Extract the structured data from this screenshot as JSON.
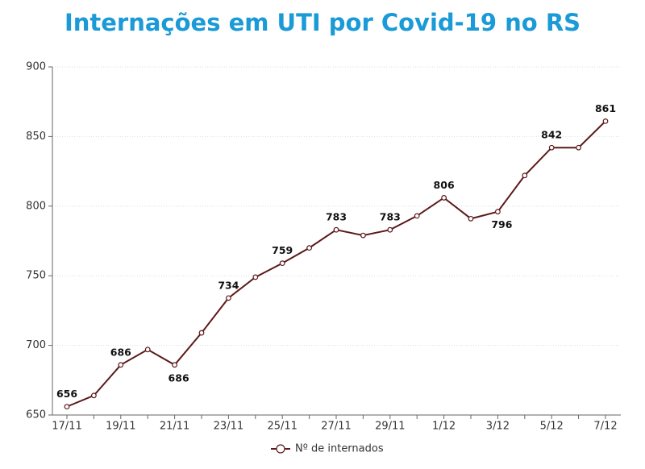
{
  "chart_data": {
    "type": "line",
    "title": "Internações em UTI por Covid-19 no RS",
    "categories": [
      "17/11",
      null,
      "19/11",
      null,
      "21/11",
      null,
      "23/11",
      null,
      "25/11",
      null,
      "27/11",
      null,
      "29/11",
      null,
      "1/12",
      null,
      "3/12",
      null,
      "5/12",
      null,
      "7/12"
    ],
    "series": [
      {
        "name": "Nº de internados",
        "color": "#5c1a1a",
        "values": [
          656,
          664,
          686,
          697,
          686,
          709,
          734,
          749,
          759,
          770,
          783,
          779,
          783,
          793,
          806,
          791,
          796,
          822,
          842,
          842,
          861
        ],
        "value_labels": [
          "656",
          null,
          "686",
          null,
          "686",
          null,
          "734",
          null,
          "759",
          null,
          "783",
          null,
          "783",
          null,
          "806",
          null,
          "796",
          null,
          "842",
          null,
          "861"
        ]
      }
    ],
    "ylim": [
      650,
      900
    ],
    "yticks": [
      650,
      700,
      750,
      800,
      850,
      900
    ],
    "grid": true
  }
}
